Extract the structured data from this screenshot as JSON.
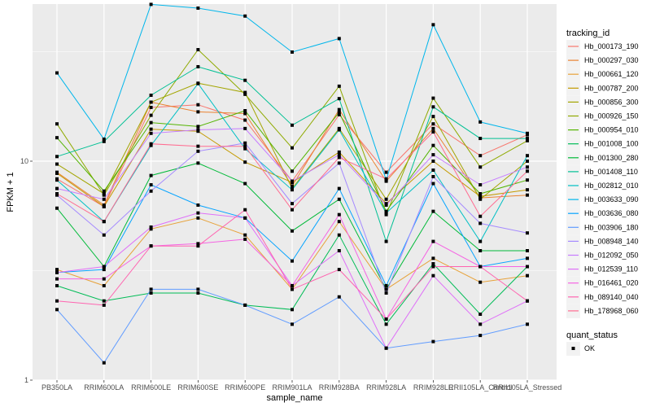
{
  "chart_data": {
    "type": "line",
    "title": "",
    "xlabel": "sample_name",
    "ylabel": "FPKM + 1",
    "y_scale": "log10",
    "ylim": [
      1,
      60
    ],
    "y_ticks": [
      1,
      10
    ],
    "y_tick_labels": [
      "1",
      "10"
    ],
    "grid": true,
    "categories": [
      "PB350LA",
      "RRIM600LA",
      "RRIM600LE",
      "RRIM600SE",
      "RRIM600PE",
      "RRIM901LA",
      "RRIM928BA",
      "RRIM928LA",
      "RRIM928LE",
      "RRII105LA_Control",
      "RRII105LA_Stressed"
    ],
    "legend": {
      "position": "right",
      "color_title": "tracking_id",
      "shape_title": "quant_status",
      "shape_entries": [
        {
          "label": "OK",
          "marker": "square"
        }
      ]
    },
    "series": [
      {
        "name": "Hb_000173_190",
        "color": "#F8766D",
        "values": [
          8.3,
          6.2,
          17.6,
          18.1,
          15.4,
          8.1,
          16.3,
          8.9,
          14.8,
          10.6,
          13.2
        ]
      },
      {
        "name": "Hb_000297_030",
        "color": "#EA8331",
        "values": [
          8.9,
          6.3,
          18.6,
          16.8,
          16.5,
          7.7,
          17.2,
          8.1,
          14.1,
          6.8,
          7.0
        ]
      },
      {
        "name": "Hb_000661_120",
        "color": "#E7A23A",
        "values": [
          3.2,
          2.7,
          4.9,
          5.5,
          4.6,
          2.6,
          5.3,
          2.6,
          3.6,
          2.8,
          3.0
        ]
      },
      {
        "name": "Hb_000787_200",
        "color": "#C49A00",
        "values": [
          8.8,
          6.2,
          14.0,
          13.7,
          9.9,
          8.0,
          11.0,
          6.4,
          10.0,
          6.9,
          7.4
        ]
      },
      {
        "name": "Hb_000856_300",
        "color": "#A3A500",
        "values": [
          9.7,
          7.1,
          18.6,
          22.7,
          20.6,
          7.5,
          14.1,
          6.7,
          16.0,
          6.7,
          10.0
        ]
      },
      {
        "name": "Hb_000926_150",
        "color": "#8FAA00",
        "values": [
          14.8,
          7.0,
          16.2,
          32.3,
          20.2,
          11.5,
          22.0,
          5.7,
          19.4,
          9.4,
          12.4
        ]
      },
      {
        "name": "Hb_000954_010",
        "color": "#53B400",
        "values": [
          12.8,
          7.3,
          15.0,
          14.4,
          17.0,
          9.0,
          16.7,
          5.9,
          11.8,
          7.1,
          8.2
        ]
      },
      {
        "name": "Hb_001008_100",
        "color": "#00BC56",
        "values": [
          2.7,
          2.3,
          2.5,
          2.5,
          2.2,
          2.1,
          4.6,
          1.8,
          3.4,
          2.0,
          3.3
        ]
      },
      {
        "name": "Hb_001300_280",
        "color": "#00BA38",
        "values": [
          6.1,
          3.3,
          8.6,
          9.8,
          7.9,
          4.8,
          6.7,
          2.6,
          5.9,
          3.9,
          3.9
        ]
      },
      {
        "name": "Hb_001408_110",
        "color": "#00C094",
        "values": [
          10.5,
          12.3,
          20.0,
          27.0,
          23.4,
          14.6,
          19.3,
          4.3,
          17.7,
          12.7,
          12.7
        ]
      },
      {
        "name": "Hb_002812_010",
        "color": "#00BFC4",
        "values": [
          8.2,
          5.3,
          11.8,
          22.6,
          11.4,
          7.4,
          13.9,
          5.8,
          9.1,
          4.3,
          10.6
        ]
      },
      {
        "name": "Hb_003633_090",
        "color": "#00B6EB",
        "values": [
          25.3,
          12.6,
          52.0,
          50.0,
          46.0,
          31.5,
          36.3,
          8.2,
          42.0,
          15.1,
          13.4
        ]
      },
      {
        "name": "Hb_003636_080",
        "color": "#06A4FF",
        "values": [
          3.1,
          3.2,
          7.8,
          6.3,
          5.5,
          3.5,
          7.5,
          2.7,
          7.9,
          3.3,
          3.6
        ]
      },
      {
        "name": "Hb_003906_180",
        "color": "#619CFF",
        "values": [
          2.1,
          1.2,
          2.6,
          2.6,
          2.2,
          1.8,
          2.4,
          1.4,
          1.5,
          1.6,
          1.8
        ]
      },
      {
        "name": "Hb_008948_140",
        "color": "#A58AFF",
        "values": [
          7.0,
          4.6,
          7.3,
          11.1,
          12.1,
          6.4,
          9.8,
          2.5,
          8.5,
          5.2,
          4.7
        ]
      },
      {
        "name": "Hb_012092_050",
        "color": "#C77CFF",
        "values": [
          7.5,
          6.7,
          13.4,
          13.9,
          14.1,
          8.1,
          10.7,
          6.3,
          10.7,
          7.8,
          9.4
        ]
      },
      {
        "name": "Hb_012539_110",
        "color": "#DF70F8",
        "values": [
          3.1,
          3.3,
          5.0,
          5.8,
          5.5,
          2.7,
          3.9,
          1.4,
          3.0,
          1.8,
          2.3
        ]
      },
      {
        "name": "Hb_016461_020",
        "color": "#F564E3",
        "values": [
          2.9,
          2.9,
          4.1,
          4.2,
          4.4,
          2.7,
          5.7,
          1.9,
          4.3,
          3.3,
          3.3
        ]
      },
      {
        "name": "Hb_089140_040",
        "color": "#FF64B0",
        "values": [
          2.3,
          2.2,
          4.1,
          4.1,
          6.0,
          2.6,
          3.2,
          1.9,
          3.3,
          3.3,
          2.3
        ]
      },
      {
        "name": "Hb_178968_060",
        "color": "#FF6C91",
        "values": [
          7.1,
          5.3,
          12.0,
          11.7,
          11.7,
          6.0,
          10.4,
          8.3,
          13.6,
          5.6,
          9.0
        ]
      }
    ]
  }
}
